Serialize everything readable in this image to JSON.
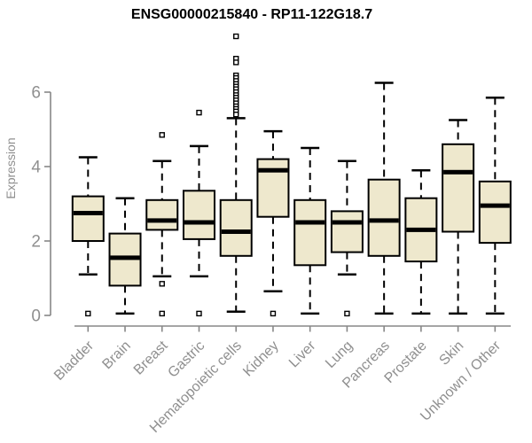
{
  "chart_data": {
    "type": "boxplot",
    "title": "ENSG00000215840 - RP11-122G18.7",
    "ylabel": "Expression",
    "xlabel": "",
    "yticks": [
      0,
      2,
      4,
      6
    ],
    "ylim": [
      0,
      7.6
    ],
    "grid": false,
    "legend": "none",
    "box_fill": "#EEE8CD",
    "box_stroke": "#000000",
    "median_color": "#000000",
    "axis_color": "#878787",
    "tick_text_color": "#8f8f8f",
    "categories": [
      "Bladder",
      "Brain",
      "Breast",
      "Gastric",
      "Hematopoietic cells",
      "Kidney",
      "Liver",
      "Lung",
      "Pancreas",
      "Prostate",
      "Skin",
      "Unknown / Other"
    ],
    "series": [
      {
        "name": "Bladder",
        "whisker_low": 1.1,
        "q1": 2.0,
        "median": 2.75,
        "q3": 3.2,
        "whisker_high": 4.25,
        "outliers": [
          0.05
        ]
      },
      {
        "name": "Brain",
        "whisker_low": 0.05,
        "q1": 0.8,
        "median": 1.55,
        "q3": 2.2,
        "whisker_high": 3.15,
        "outliers": []
      },
      {
        "name": "Breast",
        "whisker_low": 1.05,
        "q1": 2.3,
        "median": 2.55,
        "q3": 3.1,
        "whisker_high": 4.15,
        "outliers": [
          4.85,
          0.85,
          0.05
        ]
      },
      {
        "name": "Gastric",
        "whisker_low": 1.05,
        "q1": 2.05,
        "median": 2.5,
        "q3": 3.35,
        "whisker_high": 4.55,
        "outliers": [
          5.45,
          0.05
        ]
      },
      {
        "name": "Hematopoietic cells",
        "whisker_low": 0.1,
        "q1": 1.6,
        "median": 2.25,
        "q3": 3.1,
        "whisker_high": 5.3,
        "outliers": [
          7.5,
          6.9,
          6.8,
          6.45,
          6.38,
          6.3,
          6.22,
          6.15,
          6.08,
          6.0,
          5.92,
          5.85,
          5.78,
          5.7,
          5.62,
          5.55,
          5.48,
          5.4
        ]
      },
      {
        "name": "Kidney",
        "whisker_low": 0.65,
        "q1": 2.65,
        "median": 3.9,
        "q3": 4.2,
        "whisker_high": 4.95,
        "outliers": [
          0.05
        ]
      },
      {
        "name": "Liver",
        "whisker_low": 0.05,
        "q1": 1.35,
        "median": 2.5,
        "q3": 3.1,
        "whisker_high": 4.5,
        "outliers": []
      },
      {
        "name": "Lung",
        "whisker_low": 1.1,
        "q1": 1.7,
        "median": 2.5,
        "q3": 2.8,
        "whisker_high": 4.15,
        "outliers": [
          0.05
        ]
      },
      {
        "name": "Pancreas",
        "whisker_low": 0.05,
        "q1": 1.6,
        "median": 2.55,
        "q3": 3.65,
        "whisker_high": 6.25,
        "outliers": []
      },
      {
        "name": "Prostate",
        "whisker_low": 0.05,
        "q1": 1.45,
        "median": 2.3,
        "q3": 3.15,
        "whisker_high": 3.9,
        "outliers": []
      },
      {
        "name": "Skin",
        "whisker_low": 0.05,
        "q1": 2.25,
        "median": 3.85,
        "q3": 4.6,
        "whisker_high": 5.25,
        "outliers": []
      },
      {
        "name": "Unknown / Other",
        "whisker_low": 0.05,
        "q1": 1.95,
        "median": 2.95,
        "q3": 3.6,
        "whisker_high": 5.85,
        "outliers": []
      }
    ]
  }
}
